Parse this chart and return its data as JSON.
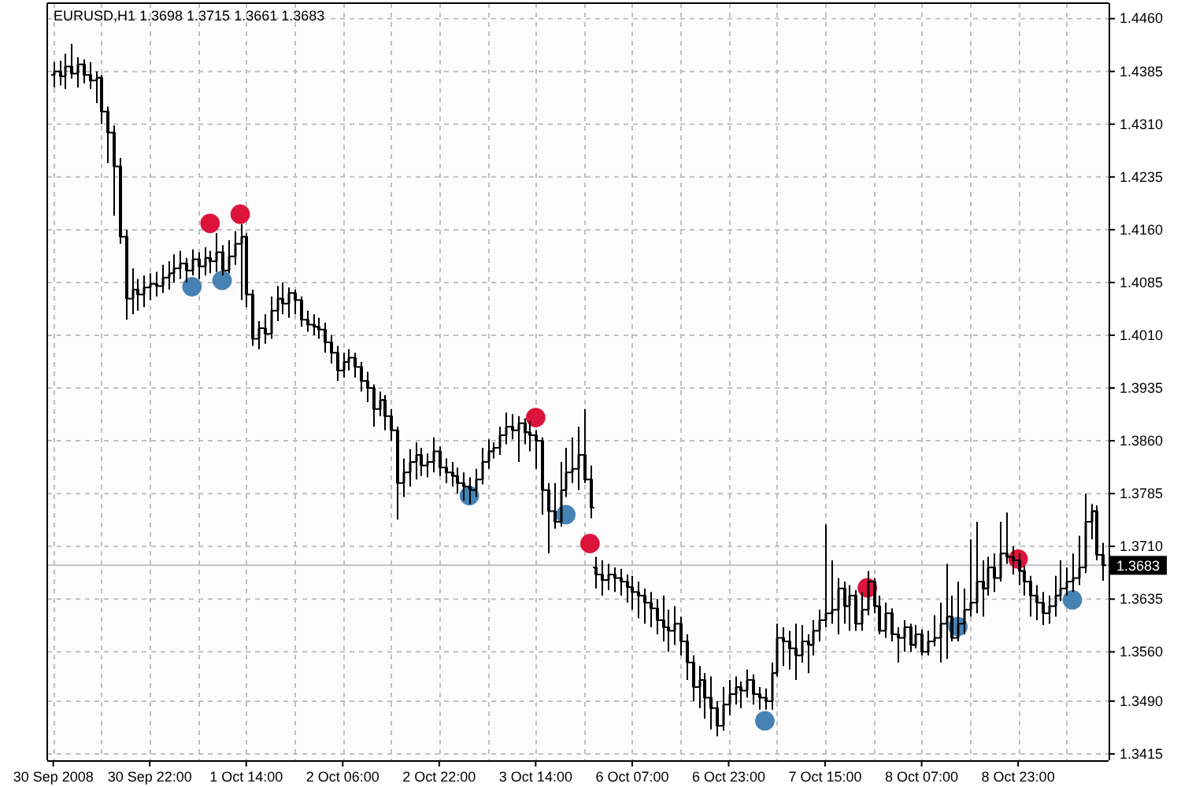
{
  "chart_data": {
    "type": "candlestick",
    "title": "EURUSD,H1 1.3698 1.3715 1.3661 1.3683",
    "categories": [
      "30 Sep 2008",
      null,
      null,
      null,
      null,
      null,
      null,
      null,
      null,
      null,
      null,
      null,
      null,
      null,
      null,
      null,
      "30 Sep 22:00",
      null,
      null,
      null,
      null,
      null,
      null,
      null,
      null,
      null,
      null,
      null,
      null,
      null,
      null,
      null,
      "1 Oct 14:00",
      null,
      null,
      null,
      null,
      null,
      null,
      null,
      null,
      null,
      null,
      null,
      null,
      null,
      null,
      null,
      "2 Oct 06:00",
      null,
      null,
      null,
      null,
      null,
      null,
      null,
      null,
      null,
      null,
      null,
      null,
      null,
      null,
      null,
      "2 Oct 22:00",
      null,
      null,
      null,
      null,
      null,
      null,
      null,
      null,
      null,
      null,
      null,
      null,
      null,
      null,
      null,
      "3 Oct 14:00",
      null,
      null,
      null,
      null,
      null,
      null,
      null,
      null,
      null,
      null,
      null,
      null,
      null,
      null,
      null,
      "6 Oct 07:00",
      null,
      null,
      null,
      null,
      null,
      null,
      null,
      null,
      null,
      null,
      null,
      null,
      null,
      null,
      null,
      "6 Oct 23:00",
      null,
      null,
      null,
      null,
      null,
      null,
      null,
      null,
      null,
      null,
      null,
      null,
      null,
      null,
      null,
      "7 Oct 15:00",
      null,
      null,
      null,
      null,
      null,
      null,
      null,
      null,
      null,
      null,
      null,
      null,
      null,
      null,
      null,
      "8 Oct 07:00",
      null,
      null,
      null,
      null,
      null,
      null,
      null,
      null,
      null,
      null,
      null,
      null,
      null,
      null,
      null,
      "8 Oct 23:00",
      null,
      null,
      null,
      null,
      null,
      null,
      null,
      null,
      null,
      null,
      null,
      null,
      null,
      null
    ],
    "ylim": [
      1.3406,
      1.4482
    ],
    "yticks": [
      {
        "value": 1.3415,
        "label": "1.3415"
      },
      {
        "value": 1.349,
        "label": "1.3490"
      },
      {
        "value": 1.356,
        "label": "1.3560"
      },
      {
        "value": 1.3635,
        "label": "1.3635"
      },
      {
        "value": 1.371,
        "label": "1.3710"
      },
      {
        "value": 1.3785,
        "label": "1.3785"
      },
      {
        "value": 1.386,
        "label": "1.3860"
      },
      {
        "value": 1.3935,
        "label": "1.3935"
      },
      {
        "value": 1.401,
        "label": "1.4010"
      },
      {
        "value": 1.4085,
        "label": "1.4085"
      },
      {
        "value": 1.416,
        "label": "1.4160"
      },
      {
        "value": 1.4235,
        "label": "1.4235"
      },
      {
        "value": 1.431,
        "label": "1.4310"
      },
      {
        "value": 1.4385,
        "label": "1.4385"
      },
      {
        "value": 1.446,
        "label": "1.4460"
      }
    ],
    "grid": true,
    "ref_lines": [
      {
        "axis": "y",
        "value": 1.3683,
        "label": "1.3683",
        "color": "#c0c0c0"
      }
    ],
    "series": [
      {
        "type": "candlestick",
        "color": "#000000",
        "ohlc": [
          [
            1.438,
            1.4398,
            1.4362,
            1.4385
          ],
          [
            1.4385,
            1.44,
            1.4365,
            1.4378
          ],
          [
            1.4378,
            1.441,
            1.436,
            1.4392
          ],
          [
            1.4392,
            1.4424,
            1.4375,
            1.4382
          ],
          [
            1.4382,
            1.4405,
            1.4362,
            1.4395
          ],
          [
            1.4395,
            1.4402,
            1.4368,
            1.438
          ],
          [
            1.438,
            1.4398,
            1.436,
            1.4372
          ],
          [
            1.4372,
            1.4385,
            1.434,
            1.4376
          ],
          [
            1.4376,
            1.438,
            1.431,
            1.4328
          ],
          [
            1.4328,
            1.4335,
            1.4255,
            1.4298
          ],
          [
            1.4298,
            1.4308,
            1.418,
            1.425
          ],
          [
            1.425,
            1.4262,
            1.414,
            1.415
          ],
          [
            1.415,
            1.416,
            1.4032,
            1.4062
          ],
          [
            1.4062,
            1.4105,
            1.404,
            1.4075
          ],
          [
            1.4075,
            1.409,
            1.4045,
            1.4068
          ],
          [
            1.4068,
            1.4095,
            1.405,
            1.4078
          ],
          [
            1.4078,
            1.4098,
            1.406,
            1.4083
          ],
          [
            1.4083,
            1.41,
            1.4065,
            1.408
          ],
          [
            1.408,
            1.411,
            1.407,
            1.4092
          ],
          [
            1.4092,
            1.4115,
            1.4075,
            1.4098
          ],
          [
            1.4098,
            1.4125,
            1.4085,
            1.4105
          ],
          [
            1.4105,
            1.413,
            1.409,
            1.4112
          ],
          [
            1.4112,
            1.412,
            1.4085,
            1.4102
          ],
          [
            1.4102,
            1.4132,
            1.4095,
            1.4118
          ],
          [
            1.4118,
            1.4128,
            1.409,
            1.4108
          ],
          [
            1.4108,
            1.4135,
            1.4095,
            1.412
          ],
          [
            1.412,
            1.413,
            1.4098,
            1.4115
          ],
          [
            1.4115,
            1.4155,
            1.41,
            1.4128
          ],
          [
            1.4128,
            1.4138,
            1.4095,
            1.4102
          ],
          [
            1.4102,
            1.4145,
            1.4098,
            1.4122
          ],
          [
            1.4122,
            1.4158,
            1.411,
            1.414
          ],
          [
            1.414,
            1.4168,
            1.406,
            1.415
          ],
          [
            1.415,
            1.4155,
            1.405,
            1.4068
          ],
          [
            1.4068,
            1.4075,
            1.3995,
            1.4005
          ],
          [
            1.4005,
            1.403,
            1.399,
            1.402
          ],
          [
            1.402,
            1.404,
            1.3998,
            1.4012
          ],
          [
            1.4012,
            1.4065,
            1.4005,
            1.4045
          ],
          [
            1.4045,
            1.408,
            1.403,
            1.4062
          ],
          [
            1.4062,
            1.4085,
            1.404,
            1.4055
          ],
          [
            1.4055,
            1.4078,
            1.4035,
            1.407
          ],
          [
            1.407,
            1.4075,
            1.404,
            1.406
          ],
          [
            1.406,
            1.4065,
            1.4022,
            1.4032
          ],
          [
            1.4032,
            1.4045,
            1.4015,
            1.4025
          ],
          [
            1.4025,
            1.404,
            1.401,
            1.4022
          ],
          [
            1.4022,
            1.4035,
            1.4005,
            1.4018
          ],
          [
            1.4018,
            1.4028,
            1.3985,
            1.4
          ],
          [
            1.4,
            1.401,
            1.397,
            1.3985
          ],
          [
            1.3985,
            1.3995,
            1.3945,
            1.396
          ],
          [
            1.396,
            1.3985,
            1.395,
            1.3972
          ],
          [
            1.3972,
            1.399,
            1.396,
            1.3978
          ],
          [
            1.3978,
            1.3985,
            1.395,
            1.3965
          ],
          [
            1.3965,
            1.3972,
            1.393,
            1.3945
          ],
          [
            1.3945,
            1.3958,
            1.3915,
            1.3935
          ],
          [
            1.3935,
            1.394,
            1.388,
            1.3905
          ],
          [
            1.3905,
            1.393,
            1.3895,
            1.3918
          ],
          [
            1.3918,
            1.3925,
            1.3875,
            1.3895
          ],
          [
            1.3895,
            1.3905,
            1.386,
            1.3875
          ],
          [
            1.3875,
            1.388,
            1.3748,
            1.38
          ],
          [
            1.38,
            1.3835,
            1.378,
            1.3815
          ],
          [
            1.3815,
            1.3848,
            1.3795,
            1.383
          ],
          [
            1.383,
            1.3858,
            1.3805,
            1.384
          ],
          [
            1.384,
            1.385,
            1.381,
            1.3825
          ],
          [
            1.3825,
            1.3842,
            1.3808,
            1.383
          ],
          [
            1.383,
            1.3865,
            1.3815,
            1.3845
          ],
          [
            1.3845,
            1.3852,
            1.381,
            1.3822
          ],
          [
            1.3822,
            1.3835,
            1.38,
            1.3815
          ],
          [
            1.3815,
            1.383,
            1.3795,
            1.381
          ],
          [
            1.381,
            1.3822,
            1.3785,
            1.38
          ],
          [
            1.38,
            1.3815,
            1.3775,
            1.3795
          ],
          [
            1.3795,
            1.3808,
            1.377,
            1.379
          ],
          [
            1.379,
            1.382,
            1.378,
            1.3805
          ],
          [
            1.3805,
            1.385,
            1.3798,
            1.383
          ],
          [
            1.383,
            1.3862,
            1.382,
            1.3845
          ],
          [
            1.3845,
            1.3858,
            1.3835,
            1.385
          ],
          [
            1.385,
            1.388,
            1.384,
            1.3868
          ],
          [
            1.3868,
            1.39,
            1.3855,
            1.388
          ],
          [
            1.388,
            1.3898,
            1.3862,
            1.3875
          ],
          [
            1.3875,
            1.3895,
            1.383,
            1.3885
          ],
          [
            1.3885,
            1.3892,
            1.3855,
            1.3872
          ],
          [
            1.3872,
            1.3888,
            1.3845,
            1.3868
          ],
          [
            1.3868,
            1.3875,
            1.382,
            1.386
          ],
          [
            1.386,
            1.3865,
            1.3755,
            1.379
          ],
          [
            1.379,
            1.38,
            1.37,
            1.376
          ],
          [
            1.376,
            1.38,
            1.3735,
            1.3745
          ],
          [
            1.3745,
            1.383,
            1.3738,
            1.379
          ],
          [
            1.379,
            1.385,
            1.378,
            1.3815
          ],
          [
            1.3815,
            1.3865,
            1.38,
            1.382
          ],
          [
            1.382,
            1.388,
            1.379,
            1.384
          ],
          [
            1.384,
            1.3905,
            1.38,
            1.3805
          ],
          [
            1.3805,
            1.3825,
            1.375,
            1.3765
          ],
          [
            1.368,
            1.3695,
            1.365,
            1.367
          ],
          [
            1.367,
            1.369,
            1.364,
            1.3662
          ],
          [
            1.3662,
            1.3685,
            1.3648,
            1.367
          ],
          [
            1.367,
            1.368,
            1.3645,
            1.3665
          ],
          [
            1.3665,
            1.3678,
            1.364,
            1.366
          ],
          [
            1.366,
            1.367,
            1.363,
            1.3652
          ],
          [
            1.3652,
            1.3668,
            1.362,
            1.3645
          ],
          [
            1.3645,
            1.366,
            1.3608,
            1.364
          ],
          [
            1.364,
            1.365,
            1.36,
            1.363
          ],
          [
            1.363,
            1.3645,
            1.3595,
            1.3622
          ],
          [
            1.3622,
            1.3635,
            1.3585,
            1.3605
          ],
          [
            1.3605,
            1.364,
            1.3575,
            1.3595
          ],
          [
            1.3595,
            1.362,
            1.356,
            1.359
          ],
          [
            1.359,
            1.3625,
            1.357,
            1.36
          ],
          [
            1.36,
            1.361,
            1.3555,
            1.3575
          ],
          [
            1.3575,
            1.3585,
            1.352,
            1.3545
          ],
          [
            1.3545,
            1.3555,
            1.349,
            1.351
          ],
          [
            1.351,
            1.354,
            1.348,
            1.352
          ],
          [
            1.352,
            1.353,
            1.3465,
            1.3495
          ],
          [
            1.3495,
            1.3525,
            1.345,
            1.348
          ],
          [
            1.348,
            1.349,
            1.344,
            1.3455
          ],
          [
            1.3455,
            1.351,
            1.3448,
            1.3485
          ],
          [
            1.3485,
            1.352,
            1.347,
            1.35
          ],
          [
            1.35,
            1.3525,
            1.3485,
            1.351
          ],
          [
            1.351,
            1.3518,
            1.348,
            1.3505
          ],
          [
            1.3505,
            1.3535,
            1.3495,
            1.352
          ],
          [
            1.352,
            1.3528,
            1.3485,
            1.35
          ],
          [
            1.35,
            1.351,
            1.3478,
            1.3495
          ],
          [
            1.3495,
            1.3508,
            1.3478,
            1.349
          ],
          [
            1.349,
            1.3545,
            1.3478,
            1.353
          ],
          [
            1.353,
            1.36,
            1.3525,
            1.358
          ],
          [
            1.358,
            1.3595,
            1.354,
            1.3575
          ],
          [
            1.3575,
            1.359,
            1.3535,
            1.3565
          ],
          [
            1.3565,
            1.36,
            1.352,
            1.3555
          ],
          [
            1.3555,
            1.3598,
            1.3545,
            1.3575
          ],
          [
            1.3575,
            1.3585,
            1.353,
            1.357
          ],
          [
            1.357,
            1.3605,
            1.3555,
            1.359
          ],
          [
            1.359,
            1.362,
            1.3575,
            1.3605
          ],
          [
            1.3605,
            1.3741,
            1.3595,
            1.3615
          ],
          [
            1.3615,
            1.369,
            1.36,
            1.362
          ],
          [
            1.362,
            1.3665,
            1.3585,
            1.365
          ],
          [
            1.365,
            1.366,
            1.36,
            1.3625
          ],
          [
            1.3625,
            1.3655,
            1.359,
            1.364
          ],
          [
            1.364,
            1.3648,
            1.359,
            1.36
          ],
          [
            1.36,
            1.3645,
            1.359,
            1.362
          ],
          [
            1.362,
            1.3675,
            1.3612,
            1.366
          ],
          [
            1.366,
            1.3665,
            1.3615,
            1.3625
          ],
          [
            1.3625,
            1.364,
            1.3585,
            1.359
          ],
          [
            1.359,
            1.363,
            1.358,
            1.3615
          ],
          [
            1.3615,
            1.3622,
            1.3575,
            1.3585
          ],
          [
            1.3585,
            1.3595,
            1.3545,
            1.358
          ],
          [
            1.358,
            1.3605,
            1.356,
            1.3595
          ],
          [
            1.3595,
            1.36,
            1.356,
            1.357
          ],
          [
            1.357,
            1.3598,
            1.3565,
            1.3585
          ],
          [
            1.3585,
            1.3592,
            1.3555,
            1.356
          ],
          [
            1.356,
            1.359,
            1.3555,
            1.3575
          ],
          [
            1.3575,
            1.3612,
            1.3568,
            1.358
          ],
          [
            1.358,
            1.363,
            1.3545,
            1.36
          ],
          [
            1.36,
            1.3685,
            1.355,
            1.361
          ],
          [
            1.361,
            1.364,
            1.3575,
            1.358
          ],
          [
            1.358,
            1.366,
            1.3575,
            1.36
          ],
          [
            1.36,
            1.365,
            1.3585,
            1.362
          ],
          [
            1.362,
            1.372,
            1.361,
            1.363
          ],
          [
            1.363,
            1.3745,
            1.3615,
            1.366
          ],
          [
            1.366,
            1.369,
            1.361,
            1.365
          ],
          [
            1.365,
            1.3695,
            1.364,
            1.368
          ],
          [
            1.368,
            1.37,
            1.3645,
            1.3665
          ],
          [
            1.3665,
            1.3745,
            1.366,
            1.37
          ],
          [
            1.37,
            1.3758,
            1.3685,
            1.3695
          ],
          [
            1.3695,
            1.371,
            1.367,
            1.369
          ],
          [
            1.369,
            1.37,
            1.3655,
            1.3675
          ],
          [
            1.3675,
            1.3682,
            1.364,
            1.366
          ],
          [
            1.366,
            1.3668,
            1.361,
            1.364
          ],
          [
            1.364,
            1.3655,
            1.3605,
            1.363
          ],
          [
            1.363,
            1.3645,
            1.3598,
            1.3615
          ],
          [
            1.3615,
            1.364,
            1.36,
            1.3625
          ],
          [
            1.3625,
            1.3668,
            1.361,
            1.364
          ],
          [
            1.364,
            1.369,
            1.3632,
            1.365
          ],
          [
            1.365,
            1.368,
            1.364,
            1.366
          ],
          [
            1.366,
            1.37,
            1.3645,
            1.3665
          ],
          [
            1.3665,
            1.3725,
            1.3655,
            1.368
          ],
          [
            1.368,
            1.3785,
            1.3672,
            1.3745
          ],
          [
            1.3745,
            1.377,
            1.372,
            1.376
          ],
          [
            1.376,
            1.3768,
            1.369,
            1.3698
          ],
          [
            1.3698,
            1.3715,
            1.3661,
            1.3683
          ]
        ]
      },
      {
        "type": "scatter",
        "color": "#dc143c",
        "marker": "circle",
        "values": [
          null,
          null,
          null,
          null,
          null,
          null,
          null,
          null,
          null,
          null,
          null,
          null,
          null,
          null,
          null,
          null,
          null,
          null,
          null,
          null,
          null,
          null,
          null,
          null,
          null,
          null,
          1.4169,
          null,
          null,
          null,
          null,
          1.4182,
          null,
          null,
          null,
          null,
          null,
          null,
          null,
          null,
          null,
          null,
          null,
          null,
          null,
          null,
          null,
          null,
          null,
          null,
          null,
          null,
          null,
          null,
          null,
          null,
          null,
          null,
          null,
          null,
          null,
          null,
          null,
          null,
          null,
          null,
          null,
          null,
          null,
          null,
          null,
          null,
          null,
          null,
          null,
          null,
          null,
          null,
          null,
          null,
          1.3893,
          null,
          null,
          null,
          null,
          null,
          null,
          null,
          null,
          1.3714,
          null,
          null,
          null,
          null,
          null,
          null,
          null,
          null,
          null,
          null,
          null,
          null,
          null,
          null,
          null,
          null,
          null,
          null,
          null,
          null,
          null,
          null,
          null,
          null,
          null,
          null,
          null,
          null,
          null,
          null,
          null,
          null,
          null,
          null,
          null,
          null,
          null,
          null,
          null,
          null,
          null,
          null,
          null,
          null,
          null,
          1.3651,
          null,
          null,
          null,
          null,
          null,
          null,
          null,
          null,
          null,
          null,
          null,
          null,
          null,
          null,
          null,
          null,
          null,
          null,
          null,
          null,
          null,
          null,
          null,
          null,
          1.3692,
          null,
          null,
          null,
          null,
          null,
          null,
          null,
          null,
          null,
          null,
          null,
          null,
          null,
          null
        ]
      },
      {
        "type": "scatter",
        "color": "#4682b4",
        "marker": "circle",
        "values": [
          null,
          null,
          null,
          null,
          null,
          null,
          null,
          null,
          null,
          null,
          null,
          null,
          null,
          null,
          null,
          null,
          null,
          null,
          null,
          null,
          null,
          null,
          null,
          1.4079,
          null,
          null,
          null,
          null,
          1.4088,
          null,
          null,
          null,
          null,
          null,
          null,
          null,
          null,
          null,
          null,
          null,
          null,
          null,
          null,
          null,
          null,
          null,
          null,
          null,
          null,
          null,
          null,
          null,
          null,
          null,
          null,
          null,
          null,
          null,
          null,
          null,
          null,
          null,
          null,
          null,
          null,
          null,
          null,
          null,
          null,
          1.3782,
          null,
          null,
          null,
          null,
          null,
          null,
          null,
          null,
          null,
          null,
          null,
          null,
          null,
          null,
          null,
          1.3755,
          null,
          null,
          null,
          null,
          null,
          null,
          null,
          null,
          null,
          null,
          null,
          null,
          null,
          null,
          null,
          null,
          null,
          null,
          null,
          null,
          null,
          null,
          null,
          null,
          null,
          null,
          null,
          null,
          null,
          null,
          null,
          null,
          1.3462,
          null,
          null,
          null,
          null,
          null,
          null,
          null,
          null,
          null,
          null,
          null,
          null,
          null,
          null,
          null,
          null,
          null,
          null,
          null,
          null,
          null,
          null,
          null,
          null,
          null,
          null,
          null,
          null,
          null,
          null,
          null,
          1.3596,
          null,
          null,
          null,
          null,
          null,
          null,
          null,
          null,
          null,
          null,
          null,
          null,
          null,
          null,
          null,
          null,
          null,
          null,
          1.3634,
          null,
          null,
          null,
          null,
          null
        ]
      }
    ]
  }
}
